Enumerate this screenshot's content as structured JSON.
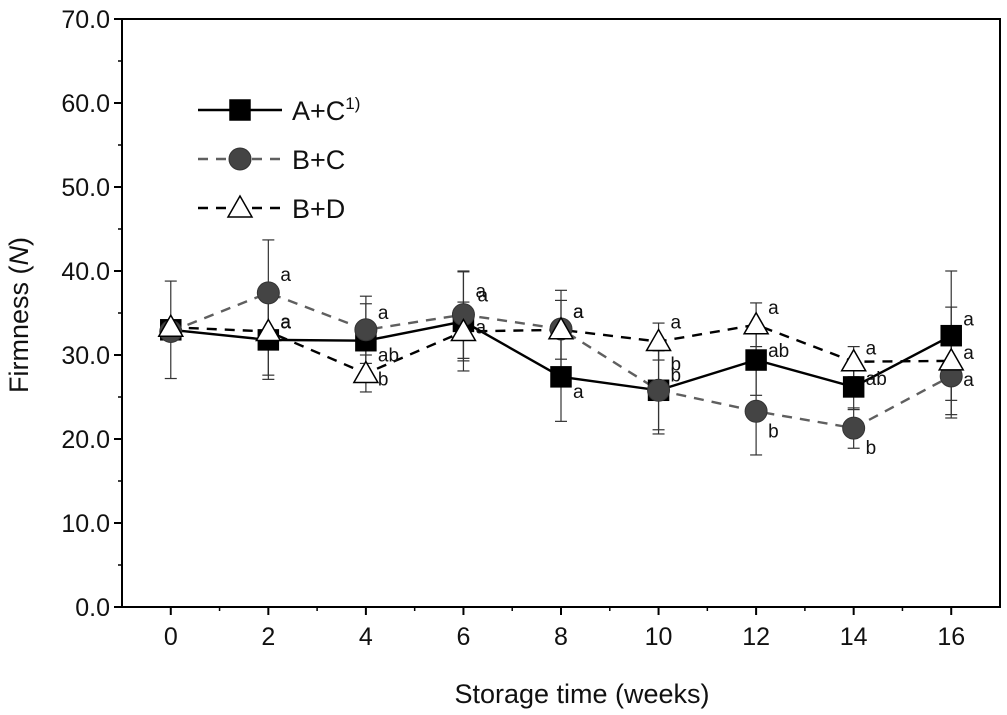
{
  "chart_data": {
    "type": "line",
    "xlabel": "Storage time (weeks)",
    "ylabel_prefix": "Firmness (",
    "ylabel_unit": "N",
    "ylabel_suffix": ")",
    "xlim": [
      -1,
      17
    ],
    "ylim": [
      0,
      70
    ],
    "x": [
      0,
      2,
      4,
      6,
      8,
      10,
      12,
      14,
      16
    ],
    "x_tick_labels": [
      "0",
      "2",
      "4",
      "6",
      "8",
      "10",
      "12",
      "14",
      "16"
    ],
    "y_ticks": [
      0,
      10,
      20,
      30,
      40,
      50,
      60,
      70
    ],
    "y_tick_labels": [
      "0.0",
      "10.0",
      "20.0",
      "30.0",
      "40.0",
      "50.0",
      "60.0",
      "70.0"
    ],
    "grid": false,
    "legend_position": "top-left",
    "series": [
      {
        "name": "A+C",
        "name_superscript": "1)",
        "marker": "square",
        "line_style": "solid",
        "line_color": "#000000",
        "marker_fill": "#000000",
        "values": [
          33.0,
          31.8,
          31.7,
          34.0,
          27.4,
          25.8,
          29.4,
          26.2,
          32.3
        ],
        "errors": [
          5.8,
          4.7,
          4.4,
          5.9,
          5.3,
          4.7,
          4.2,
          2.7,
          7.7
        ],
        "labels": [
          "",
          "a",
          "ab",
          "a",
          "a",
          "b",
          "ab",
          "ab",
          "a"
        ]
      },
      {
        "name": "B+C",
        "marker": "circle",
        "line_style": "dashed",
        "line_color": "#5f5f5f",
        "marker_fill": "#444444",
        "values": [
          32.8,
          37.4,
          33.0,
          34.8,
          33.1,
          25.8,
          23.3,
          21.3,
          27.5
        ],
        "errors": [
          0.0,
          6.3,
          4.0,
          5.2,
          4.6,
          5.2,
          5.2,
          2.4,
          5.0
        ],
        "labels": [
          "",
          "a",
          "a",
          "a",
          "a",
          "b",
          "b",
          "b",
          "a"
        ]
      },
      {
        "name": "B+D",
        "marker": "triangle-open",
        "line_style": "dashed",
        "line_color": "#000000",
        "marker_fill": "#ffffff",
        "values": [
          33.3,
          32.8,
          27.8,
          32.8,
          33.0,
          31.6,
          33.6,
          29.2,
          29.3
        ],
        "errors": [
          0.0,
          5.2,
          2.2,
          3.5,
          3.5,
          2.2,
          2.6,
          1.8,
          6.4
        ],
        "labels": [
          "",
          "a",
          "b",
          "a",
          "a",
          "a",
          "a",
          "a",
          "a"
        ]
      }
    ]
  }
}
